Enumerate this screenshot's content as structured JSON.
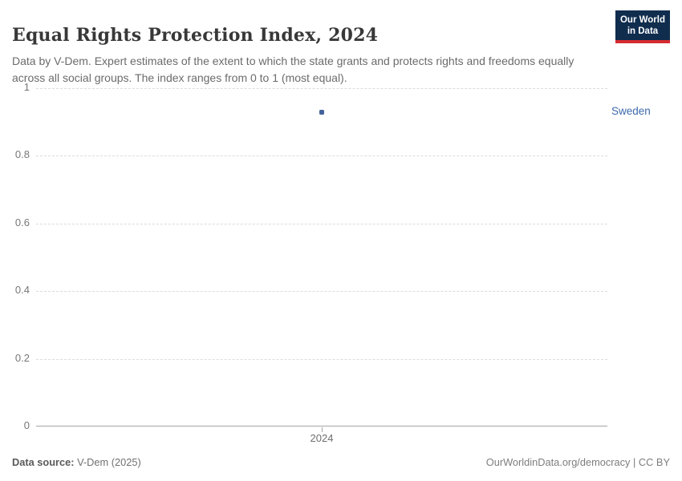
{
  "header": {
    "title": "Equal Rights Protection Index, 2024",
    "subtitle": "Data by V-Dem. Expert estimates of the extent to which the state grants and protects rights and freedoms equally across all social groups. The index ranges from 0 to 1 (most equal).",
    "logo": {
      "line1": "Our World",
      "line2": "in Data",
      "bg_color": "#102d4e",
      "accent_color": "#d42b2f"
    }
  },
  "chart_data": {
    "type": "scatter",
    "title": "Equal Rights Protection Index, 2024",
    "x": [
      2024
    ],
    "x_tick_labels": [
      "2024"
    ],
    "series": [
      {
        "name": "Sweden",
        "values": [
          0.93
        ],
        "color": "#44639c",
        "label_color": "#3d6aad"
      }
    ],
    "ylim": [
      0,
      1
    ],
    "yticks": [
      0,
      0.2,
      0.4,
      0.6,
      0.8,
      1
    ],
    "ytick_labels": [
      "0",
      "0.2",
      "0.4",
      "0.6",
      "0.8",
      "1"
    ],
    "grid": "horizontal dashed gridlines, solid baseline at 0",
    "grid_color": "#dcdcdc",
    "axis_color": "#a5a5a5",
    "legend_position": "entity label right of plot"
  },
  "footer": {
    "source_label": "Data source:",
    "source_value": " V-Dem (2025)",
    "link": "OurWorldinData.org/democracy",
    "separator": " | ",
    "license": "CC BY"
  }
}
